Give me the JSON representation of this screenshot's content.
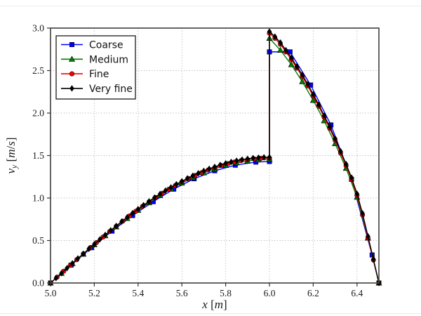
{
  "figure": {
    "background": "#ffffff",
    "frame_color": "#4a4a4a",
    "grid_color": "#b5b5b5",
    "tick_color": "#333333",
    "text_color": "#1a1a1a"
  },
  "chart_data": {
    "type": "line",
    "title": "",
    "xlabel": "x [m]",
    "ylabel": "v_y [m/s]",
    "xlim": [
      5.0,
      6.5
    ],
    "ylim": [
      0.0,
      3.0
    ],
    "grid": "dotted",
    "legend_position": "upper left",
    "discontinuity_x": 6.0,
    "x_ticks": [
      5.0,
      5.2,
      5.4,
      5.6,
      5.8,
      6.0,
      6.2,
      6.4
    ],
    "x_tick_labels": [
      "5.0",
      "5.2",
      "5.4",
      "5.6",
      "5.8",
      "6.0",
      "6.2",
      "6.4"
    ],
    "y_ticks": [
      0.0,
      0.5,
      1.0,
      1.5,
      2.0,
      2.5,
      3.0
    ],
    "y_tick_labels": [
      "0.0",
      "0.5",
      "1.0",
      "1.5",
      "2.0",
      "2.5",
      "3.0"
    ],
    "series": [
      {
        "name": "Coarse",
        "color": "#0000ff",
        "marker": "square",
        "points": [
          [
            5.0,
            0.0
          ],
          [
            5.094,
            0.211
          ],
          [
            5.188,
            0.416
          ],
          [
            5.281,
            0.611
          ],
          [
            5.375,
            0.794
          ],
          [
            5.469,
            0.957
          ],
          [
            5.563,
            1.105
          ],
          [
            5.656,
            1.227
          ],
          [
            5.75,
            1.321
          ],
          [
            5.844,
            1.387
          ],
          [
            5.938,
            1.423
          ],
          [
            6.0,
            1.43
          ],
          [
            6.0,
            2.72
          ],
          [
            6.094,
            2.72
          ],
          [
            6.188,
            2.33
          ],
          [
            6.281,
            1.86
          ],
          [
            6.375,
            1.22
          ],
          [
            6.469,
            0.33
          ],
          [
            6.5,
            0.0
          ]
        ]
      },
      {
        "name": "Medium",
        "color": "#008000",
        "marker": "triangle-up",
        "points": [
          [
            5.0,
            0.0
          ],
          [
            5.05,
            0.114
          ],
          [
            5.1,
            0.228
          ],
          [
            5.15,
            0.34
          ],
          [
            5.2,
            0.45
          ],
          [
            5.25,
            0.557
          ],
          [
            5.3,
            0.661
          ],
          [
            5.35,
            0.76
          ],
          [
            5.4,
            0.855
          ],
          [
            5.45,
            0.945
          ],
          [
            5.5,
            1.029
          ],
          [
            5.55,
            1.106
          ],
          [
            5.6,
            1.177
          ],
          [
            5.65,
            1.241
          ],
          [
            5.7,
            1.296
          ],
          [
            5.75,
            1.344
          ],
          [
            5.8,
            1.384
          ],
          [
            5.85,
            1.415
          ],
          [
            5.9,
            1.437
          ],
          [
            5.95,
            1.45
          ],
          [
            6.0,
            1.455
          ],
          [
            6.0,
            2.88
          ],
          [
            6.05,
            2.74
          ],
          [
            6.1,
            2.57
          ],
          [
            6.15,
            2.37
          ],
          [
            6.2,
            2.15
          ],
          [
            6.25,
            1.91
          ],
          [
            6.3,
            1.64
          ],
          [
            6.35,
            1.35
          ],
          [
            6.4,
            1.01
          ],
          [
            6.45,
            0.53
          ],
          [
            6.5,
            0.0
          ]
        ]
      },
      {
        "name": "Fine",
        "color": "#ff0000",
        "marker": "circle",
        "points": [
          [
            5.0,
            0.0
          ],
          [
            5.03,
            0.069
          ],
          [
            5.06,
            0.138
          ],
          [
            5.09,
            0.207
          ],
          [
            5.12,
            0.275
          ],
          [
            5.15,
            0.343
          ],
          [
            5.18,
            0.41
          ],
          [
            5.21,
            0.476
          ],
          [
            5.24,
            0.541
          ],
          [
            5.27,
            0.605
          ],
          [
            5.3,
            0.667
          ],
          [
            5.33,
            0.728
          ],
          [
            5.36,
            0.788
          ],
          [
            5.39,
            0.845
          ],
          [
            5.42,
            0.901
          ],
          [
            5.45,
            0.955
          ],
          [
            5.48,
            1.006
          ],
          [
            5.51,
            1.056
          ],
          [
            5.54,
            1.103
          ],
          [
            5.57,
            1.147
          ],
          [
            5.6,
            1.189
          ],
          [
            5.63,
            1.229
          ],
          [
            5.66,
            1.265
          ],
          [
            5.69,
            1.299
          ],
          [
            5.72,
            1.33
          ],
          [
            5.75,
            1.358
          ],
          [
            5.78,
            1.383
          ],
          [
            5.81,
            1.405
          ],
          [
            5.84,
            1.424
          ],
          [
            5.87,
            1.44
          ],
          [
            5.9,
            1.452
          ],
          [
            5.93,
            1.461
          ],
          [
            5.96,
            1.467
          ],
          [
            6.0,
            1.47
          ],
          [
            6.0,
            2.94
          ],
          [
            6.025,
            2.88
          ],
          [
            6.05,
            2.81
          ],
          [
            6.075,
            2.72
          ],
          [
            6.1,
            2.63
          ],
          [
            6.125,
            2.53
          ],
          [
            6.15,
            2.43
          ],
          [
            6.175,
            2.32
          ],
          [
            6.2,
            2.2
          ],
          [
            6.225,
            2.08
          ],
          [
            6.25,
            1.95
          ],
          [
            6.275,
            1.82
          ],
          [
            6.3,
            1.68
          ],
          [
            6.325,
            1.53
          ],
          [
            6.35,
            1.38
          ],
          [
            6.375,
            1.22
          ],
          [
            6.4,
            1.03
          ],
          [
            6.425,
            0.8
          ],
          [
            6.45,
            0.53
          ],
          [
            6.475,
            0.27
          ],
          [
            6.5,
            0.0
          ]
        ]
      },
      {
        "name": "Very fine",
        "color": "#000000",
        "marker": "diamond",
        "points": [
          [
            5.0,
            0.0
          ],
          [
            5.025,
            0.058
          ],
          [
            5.05,
            0.116
          ],
          [
            5.075,
            0.174
          ],
          [
            5.1,
            0.231
          ],
          [
            5.125,
            0.289
          ],
          [
            5.15,
            0.345
          ],
          [
            5.175,
            0.402
          ],
          [
            5.2,
            0.457
          ],
          [
            5.225,
            0.512
          ],
          [
            5.25,
            0.566
          ],
          [
            5.275,
            0.62
          ],
          [
            5.3,
            0.672
          ],
          [
            5.325,
            0.723
          ],
          [
            5.35,
            0.773
          ],
          [
            5.375,
            0.822
          ],
          [
            5.4,
            0.87
          ],
          [
            5.425,
            0.916
          ],
          [
            5.45,
            0.961
          ],
          [
            5.475,
            1.005
          ],
          [
            5.5,
            1.047
          ],
          [
            5.525,
            1.087
          ],
          [
            5.55,
            1.125
          ],
          [
            5.575,
            1.162
          ],
          [
            5.6,
            1.197
          ],
          [
            5.625,
            1.231
          ],
          [
            5.65,
            1.262
          ],
          [
            5.675,
            1.291
          ],
          [
            5.7,
            1.319
          ],
          [
            5.725,
            1.344
          ],
          [
            5.75,
            1.367
          ],
          [
            5.775,
            1.389
          ],
          [
            5.8,
            1.408
          ],
          [
            5.825,
            1.425
          ],
          [
            5.85,
            1.439
          ],
          [
            5.875,
            1.452
          ],
          [
            5.9,
            1.462
          ],
          [
            5.925,
            1.47
          ],
          [
            5.95,
            1.475
          ],
          [
            5.975,
            1.479
          ],
          [
            6.0,
            1.48
          ],
          [
            6.0,
            2.96
          ],
          [
            6.025,
            2.9
          ],
          [
            6.05,
            2.83
          ],
          [
            6.075,
            2.74
          ],
          [
            6.1,
            2.65
          ],
          [
            6.125,
            2.55
          ],
          [
            6.15,
            2.45
          ],
          [
            6.175,
            2.34
          ],
          [
            6.2,
            2.22
          ],
          [
            6.225,
            2.1
          ],
          [
            6.25,
            1.97
          ],
          [
            6.275,
            1.84
          ],
          [
            6.3,
            1.7
          ],
          [
            6.325,
            1.55
          ],
          [
            6.35,
            1.4
          ],
          [
            6.375,
            1.24
          ],
          [
            6.4,
            1.05
          ],
          [
            6.425,
            0.82
          ],
          [
            6.45,
            0.55
          ],
          [
            6.475,
            0.28
          ],
          [
            6.5,
            0.0
          ]
        ]
      }
    ]
  }
}
